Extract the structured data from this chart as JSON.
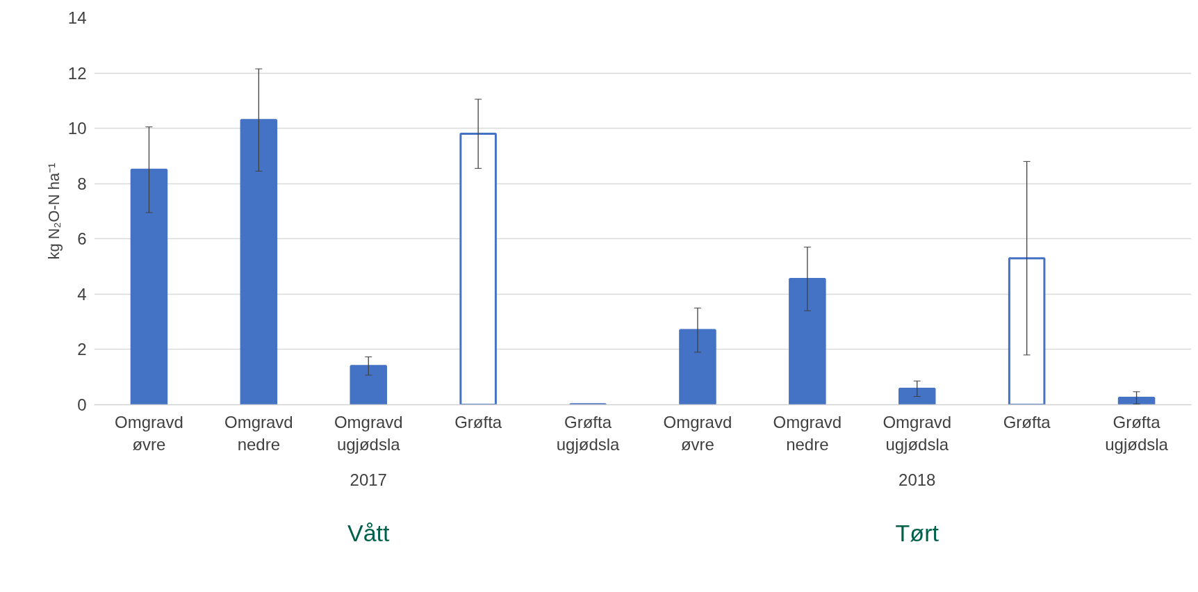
{
  "chart_data": {
    "type": "bar",
    "ylabel": "kg N₂O-N ha⁻¹",
    "categories": [
      "Omgravd øvre",
      "Omgravd nedre",
      "Omgravd ugjødsla",
      "Grøfta",
      "Grøfta ugjødsla",
      "Omgravd øvre",
      "Omgravd nedre",
      "Omgravd ugjødsla",
      "Grøfta",
      "Grøfta ugjødsla"
    ],
    "values": [
      8.5,
      10.3,
      1.4,
      9.8,
      0.02,
      2.7,
      4.55,
      0.58,
      5.3,
      0.25
    ],
    "errors": [
      1.55,
      1.85,
      0.33,
      1.25,
      null,
      0.8,
      1.15,
      0.28,
      3.5,
      0.22
    ],
    "color": "#4472c4",
    "colors": [
      "#4472c4",
      "#4472c4",
      "#4472c4",
      "#ffffff",
      "#4472c4",
      "#4472c4",
      "#4472c4",
      "#4472c4",
      "#ffffff",
      "#4472c4"
    ],
    "ylim": [
      0,
      14
    ],
    "yticks": [
      0,
      2,
      4,
      6,
      8,
      10,
      12,
      14
    ],
    "grid": "y",
    "annotations": [
      "2017",
      "2018",
      "Vått",
      "Tørt"
    ]
  }
}
